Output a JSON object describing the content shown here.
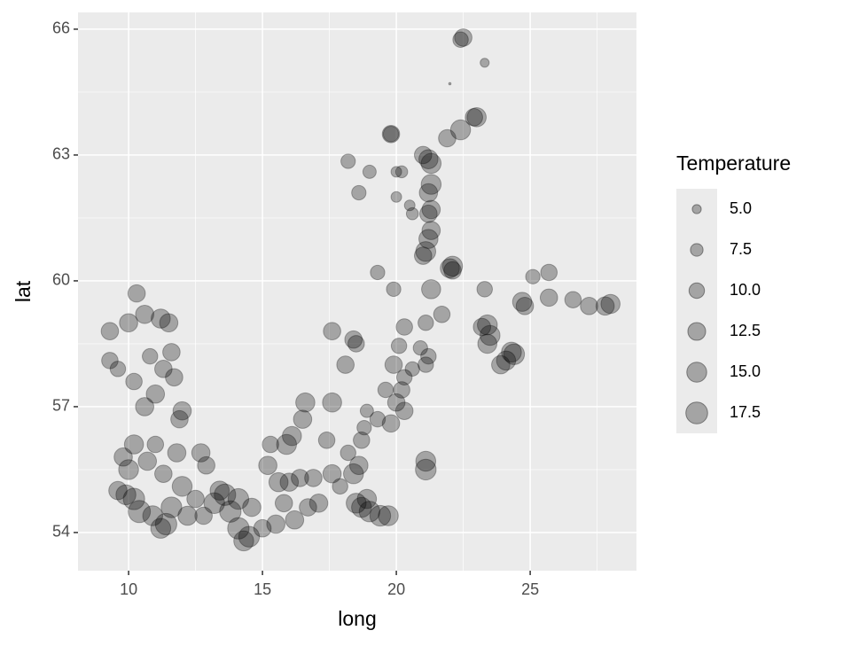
{
  "chart_data": {
    "type": "scatter",
    "x_label": "long",
    "y_label": "lat",
    "xlim": [
      8.11,
      28.97
    ],
    "ylim": [
      53.09,
      66.4
    ],
    "xticks": [
      10,
      15,
      20,
      25
    ],
    "yticks": [
      54,
      57,
      60,
      63,
      66
    ],
    "grid": true,
    "color": "#000000",
    "x": [
      22.5,
      22.4,
      23.3,
      22.0,
      23.0,
      22.9,
      22.4,
      21.9,
      19.8,
      19.8,
      21.0,
      21.2,
      21.3,
      18.2,
      19.0,
      20.0,
      20.2,
      18.6,
      21.3,
      21.2,
      20.0,
      20.5,
      20.6,
      21.3,
      21.2,
      21.3,
      21.2,
      21.1,
      21.0,
      22.1,
      22.0,
      22.1,
      19.3,
      19.9,
      21.3,
      23.3,
      25.1,
      25.7,
      24.7,
      24.8,
      25.7,
      26.6,
      27.2,
      28.0,
      27.8,
      20.3,
      21.7,
      21.1,
      23.2,
      23.4,
      23.5,
      23.4,
      24.4,
      24.3,
      24.1,
      23.9,
      17.6,
      18.4,
      18.5,
      18.1,
      20.1,
      20.9,
      21.2,
      21.1,
      20.6,
      20.3,
      19.9,
      20.2,
      19.6,
      20.0,
      20.3,
      19.8,
      19.3,
      18.9,
      18.8,
      18.7,
      17.6,
      16.6,
      16.5,
      16.1,
      15.9,
      15.3,
      17.4,
      18.2,
      21.1,
      21.1,
      15.2,
      15.6,
      16.4,
      16.9,
      17.6,
      18.6,
      18.4,
      16.0,
      15.8,
      16.7,
      17.1,
      18.5,
      18.7,
      19.0,
      19.4,
      19.7,
      18.9,
      17.9,
      15.5,
      16.2,
      14.5,
      14.3,
      14.1,
      13.8,
      13.6,
      14.1,
      13.2,
      12.5,
      12.2,
      11.6,
      11.4,
      11.2,
      10.9,
      10.4,
      10.2,
      9.9,
      9.6,
      10.0,
      9.8,
      10.2,
      10.7,
      11.3,
      12.0,
      12.7,
      11.8,
      11.0,
      11.9,
      12.0,
      11.0,
      10.6,
      10.2,
      9.6,
      9.3,
      11.3,
      11.7,
      11.6,
      10.8,
      10.0,
      9.3,
      10.3,
      10.6,
      11.2,
      11.5,
      12.9,
      13.4,
      14.6,
      15.0,
      12.8
    ],
    "values": [
      65.8,
      65.75,
      65.2,
      64.7,
      63.9,
      63.9,
      63.6,
      63.4,
      63.5,
      63.5,
      63.0,
      62.9,
      62.8,
      62.85,
      62.6,
      62.6,
      62.6,
      62.1,
      62.3,
      62.1,
      62.0,
      61.8,
      61.6,
      61.7,
      61.6,
      61.2,
      61.0,
      60.7,
      60.6,
      60.35,
      60.3,
      60.25,
      60.2,
      59.8,
      59.8,
      59.8,
      60.1,
      60.2,
      59.5,
      59.4,
      59.6,
      59.55,
      59.4,
      59.45,
      59.4,
      58.9,
      59.2,
      59.0,
      58.9,
      58.95,
      58.7,
      58.5,
      58.25,
      58.3,
      58.1,
      58.0,
      58.8,
      58.6,
      58.5,
      58.0,
      58.45,
      58.4,
      58.2,
      58.0,
      57.9,
      57.7,
      58.0,
      57.4,
      57.4,
      57.1,
      56.9,
      56.6,
      56.7,
      56.9,
      56.5,
      56.2,
      57.1,
      57.1,
      56.7,
      56.3,
      56.1,
      56.1,
      56.2,
      55.9,
      55.7,
      55.5,
      55.6,
      55.2,
      55.3,
      55.3,
      55.4,
      55.6,
      55.4,
      55.2,
      54.7,
      54.6,
      54.7,
      54.7,
      54.6,
      54.5,
      54.4,
      54.4,
      54.8,
      55.1,
      54.2,
      54.3,
      53.9,
      53.8,
      54.1,
      54.5,
      54.9,
      54.8,
      54.7,
      54.8,
      54.4,
      54.6,
      54.2,
      54.1,
      54.4,
      54.5,
      54.8,
      54.9,
      55.0,
      55.5,
      55.8,
      56.1,
      55.7,
      55.4,
      55.1,
      55.9,
      55.9,
      56.1,
      56.7,
      56.9,
      57.3,
      57.0,
      57.6,
      57.9,
      58.1,
      57.9,
      57.7,
      58.3,
      58.2,
      59.0,
      58.8,
      59.7,
      59.2,
      59.1,
      59.0,
      55.6,
      55.0,
      54.6,
      54.1,
      54.4
    ],
    "sizes": [
      12,
      10,
      5,
      2.6,
      14,
      12,
      15,
      12,
      12,
      10,
      12,
      14,
      15,
      9,
      8,
      6,
      7,
      9,
      15,
      13,
      6,
      6,
      7,
      13,
      12,
      13,
      14,
      15,
      12,
      15,
      14,
      12,
      9,
      9,
      14,
      10,
      9,
      11,
      14,
      12,
      12,
      11,
      12,
      14,
      13,
      11,
      11,
      10,
      12,
      15,
      15,
      14,
      16,
      15,
      14,
      13,
      12,
      12,
      11,
      12,
      10,
      9,
      10,
      10,
      9,
      10,
      12,
      11,
      10,
      12,
      12,
      12,
      10,
      8,
      9,
      11,
      14,
      14,
      13,
      14,
      15,
      11,
      11,
      10,
      15,
      16,
      13,
      14,
      12,
      12,
      13,
      13,
      15,
      13,
      12,
      12,
      13,
      15,
      15,
      16,
      16,
      15,
      14,
      10,
      13,
      13,
      16,
      15,
      17,
      17,
      17,
      16,
      16,
      12,
      14,
      16,
      17,
      15,
      15,
      18,
      17,
      15,
      13,
      15,
      13,
      14,
      13,
      12,
      15,
      13,
      13,
      11,
      12,
      13,
      13,
      13,
      11,
      10,
      11,
      12,
      12,
      12,
      10,
      13,
      12,
      12,
      13,
      14,
      13,
      12,
      14,
      13,
      12,
      12
    ],
    "size_legend": {
      "title": "Temperature",
      "breaks": [
        {
          "value": 5,
          "label": "5.0"
        },
        {
          "value": 7.5,
          "label": "7.5"
        },
        {
          "value": 10,
          "label": "10.0"
        },
        {
          "value": 12.5,
          "label": "12.5"
        },
        {
          "value": 15,
          "label": "15.0"
        },
        {
          "value": 17.5,
          "label": "17.5"
        }
      ]
    }
  }
}
